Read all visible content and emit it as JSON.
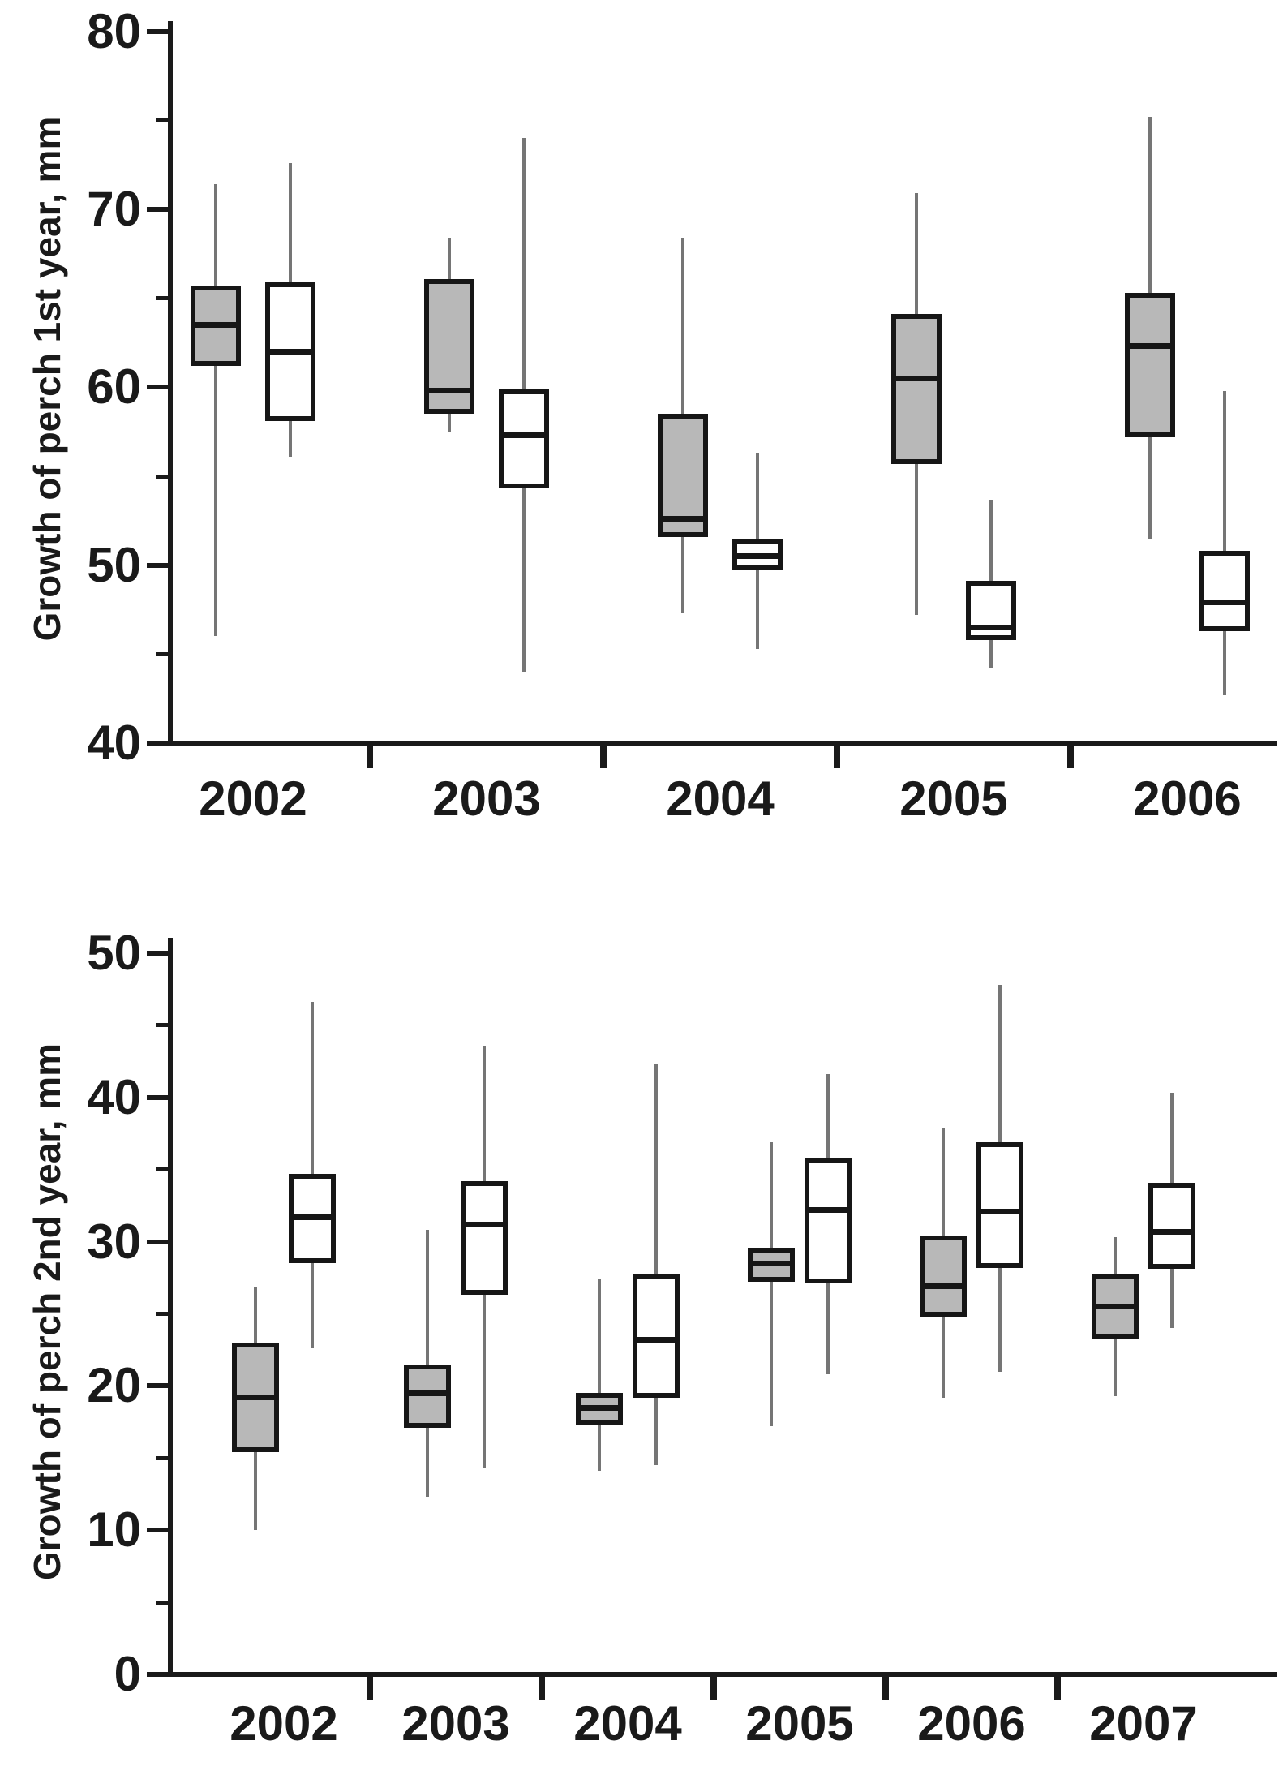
{
  "figure": {
    "background": "#ffffff",
    "description": "Two stacked box-and-whisker charts of perch growth by year; each year has a gray-filled box and a white (open) box"
  },
  "colors": {
    "axis": "#1a1a1a",
    "box_border": "#161616",
    "median": "#161616",
    "whisker": "#757575",
    "gray_fill": "#b8b8b8",
    "white_fill": "#ffffff",
    "text": "#1a1a1a"
  },
  "chart_data": [
    {
      "type": "box",
      "title": "",
      "xlabel": "",
      "ylabel": "Growth of perch 1st year, mm",
      "ylim": [
        40,
        80
      ],
      "ytick_step": 10,
      "yminor_step": 5,
      "ytick_labels": [
        "40",
        "50",
        "60",
        "70",
        "80"
      ],
      "categories": [
        "2002",
        "2003",
        "2004",
        "2005",
        "2006"
      ],
      "grid": false,
      "legend_position": "none",
      "series": [
        {
          "name": "gray-filled",
          "fill": "#b8b8b8",
          "boxes": [
            {
              "low": 46.0,
              "q1": 61.2,
              "median": 63.5,
              "q3": 65.7,
              "high": 71.4
            },
            {
              "low": 57.5,
              "q1": 58.5,
              "median": 59.8,
              "q3": 66.1,
              "high": 68.4
            },
            {
              "low": 47.3,
              "q1": 51.6,
              "median": 52.6,
              "q3": 58.5,
              "high": 68.4
            },
            {
              "low": 47.2,
              "q1": 55.7,
              "median": 60.5,
              "q3": 64.1,
              "high": 70.9
            },
            {
              "low": 51.5,
              "q1": 57.2,
              "median": 62.3,
              "q3": 65.3,
              "high": 75.2
            }
          ]
        },
        {
          "name": "white-open",
          "fill": "#ffffff",
          "boxes": [
            {
              "low": 56.1,
              "q1": 58.1,
              "median": 62.0,
              "q3": 65.9,
              "high": 72.6
            },
            {
              "low": 44.0,
              "q1": 54.3,
              "median": 57.3,
              "q3": 59.9,
              "high": 74.0
            },
            {
              "low": 45.3,
              "q1": 49.7,
              "median": 50.5,
              "q3": 51.5,
              "high": 56.3
            },
            {
              "low": 44.2,
              "q1": 45.8,
              "median": 46.5,
              "q3": 49.1,
              "high": 53.7
            },
            {
              "low": 42.7,
              "q1": 46.3,
              "median": 47.9,
              "q3": 50.8,
              "high": 59.8
            }
          ]
        }
      ]
    },
    {
      "type": "box",
      "title": "",
      "xlabel": "",
      "ylabel": "Growth of perch 2nd year, mm",
      "ylim": [
        0,
        50
      ],
      "ytick_step": 10,
      "yminor_step": 5,
      "ytick_labels": [
        "0",
        "10",
        "20",
        "30",
        "40",
        "50"
      ],
      "categories": [
        "2002",
        "2003",
        "2004",
        "2005",
        "2006",
        "2007"
      ],
      "grid": false,
      "legend_position": "none",
      "series": [
        {
          "name": "gray-filled",
          "fill": "#b8b8b8",
          "boxes": [
            {
              "low": 10.0,
              "q1": 15.4,
              "median": 19.2,
              "q3": 23.0,
              "high": 26.8
            },
            {
              "low": 12.3,
              "q1": 17.1,
              "median": 19.5,
              "q3": 21.5,
              "high": 30.8
            },
            {
              "low": 14.1,
              "q1": 17.3,
              "median": 18.5,
              "q3": 19.5,
              "high": 27.4
            },
            {
              "low": 17.2,
              "q1": 27.2,
              "median": 28.5,
              "q3": 29.6,
              "high": 36.9
            },
            {
              "low": 19.2,
              "q1": 24.8,
              "median": 26.9,
              "q3": 30.4,
              "high": 37.9
            },
            {
              "low": 19.3,
              "q1": 23.3,
              "median": 25.5,
              "q3": 27.8,
              "high": 30.3
            }
          ]
        },
        {
          "name": "white-open",
          "fill": "#ffffff",
          "boxes": [
            {
              "low": 22.6,
              "q1": 28.5,
              "median": 31.7,
              "q3": 34.7,
              "high": 46.6
            },
            {
              "low": 14.3,
              "q1": 26.3,
              "median": 31.2,
              "q3": 34.2,
              "high": 43.6
            },
            {
              "low": 14.5,
              "q1": 19.2,
              "median": 23.2,
              "q3": 27.8,
              "high": 42.3
            },
            {
              "low": 20.8,
              "q1": 27.1,
              "median": 32.2,
              "q3": 35.8,
              "high": 41.6
            },
            {
              "low": 21.0,
              "q1": 28.2,
              "median": 32.1,
              "q3": 36.9,
              "high": 47.8
            },
            {
              "low": 24.0,
              "q1": 28.1,
              "median": 30.7,
              "q3": 34.1,
              "high": 40.3
            }
          ]
        }
      ]
    }
  ]
}
